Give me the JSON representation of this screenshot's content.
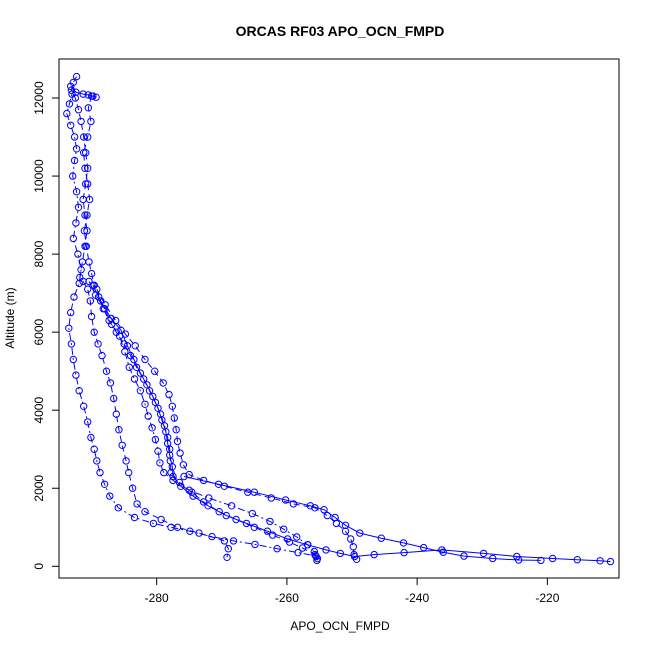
{
  "chart_data": {
    "type": "scatter",
    "title": "ORCAS RF03 APO_OCN_FMPD",
    "xlabel": "APO_OCN_FMPD",
    "ylabel": "Altitude (m)",
    "xlim": [
      -295,
      -209
    ],
    "ylim": [
      -300,
      13000
    ],
    "xticks": [
      -280,
      -260,
      -240,
      -220
    ],
    "yticks": [
      0,
      2000,
      4000,
      6000,
      8000,
      10000,
      12000
    ],
    "grid": false,
    "color": "#0000ff",
    "marker": "open-circle",
    "series": [
      {
        "style": "dashed",
        "points": [
          [
            -292.3,
            12550
          ],
          [
            -292.8,
            12400
          ],
          [
            -293.1,
            12200
          ],
          [
            -292.5,
            12000
          ],
          [
            -292.0,
            11700
          ],
          [
            -291.6,
            11400
          ],
          [
            -291.2,
            11000
          ],
          [
            -290.9,
            10600
          ],
          [
            -290.6,
            10200
          ],
          [
            -290.9,
            9800
          ],
          [
            -291.3,
            9400
          ],
          [
            -291.0,
            9000
          ],
          [
            -290.7,
            8600
          ],
          [
            -291.0,
            8200
          ],
          [
            -291.4,
            7800
          ],
          [
            -291.8,
            7400
          ],
          [
            -291.3,
            7300
          ],
          [
            -290.6,
            7100
          ],
          [
            -290.2,
            6800
          ],
          [
            -290.0,
            6400
          ],
          [
            -289.6,
            6000
          ],
          [
            -289.0,
            5700
          ],
          [
            -288.4,
            5400
          ],
          [
            -287.7,
            5000
          ],
          [
            -287.1,
            4700
          ],
          [
            -286.6,
            4300
          ],
          [
            -286.2,
            3900
          ],
          [
            -285.8,
            3500
          ],
          [
            -285.3,
            3100
          ],
          [
            -284.7,
            2700
          ],
          [
            -284.3,
            2400
          ],
          [
            -283.7,
            2000
          ],
          [
            -283.0,
            1600
          ],
          [
            -281.8,
            1400
          ],
          [
            -279.3,
            1200
          ],
          [
            -276.8,
            1000
          ],
          [
            -273.5,
            850
          ],
          [
            -269.6,
            650
          ],
          [
            -269.0,
            450
          ],
          [
            -269.2,
            230
          ]
        ]
      },
      {
        "style": "dotdash",
        "points": [
          [
            -293.0,
            12100
          ],
          [
            -293.4,
            11850
          ],
          [
            -293.8,
            11600
          ],
          [
            -293.2,
            11300
          ],
          [
            -292.6,
            11000
          ],
          [
            -292.3,
            10700
          ],
          [
            -292.6,
            10400
          ],
          [
            -292.9,
            10000
          ],
          [
            -292.3,
            9600
          ],
          [
            -292.0,
            9200
          ],
          [
            -292.4,
            8800
          ],
          [
            -292.8,
            8400
          ],
          [
            -292.1,
            8000
          ],
          [
            -291.6,
            7600
          ],
          [
            -291.9,
            7250
          ],
          [
            -292.7,
            6900
          ],
          [
            -293.2,
            6500
          ],
          [
            -293.5,
            6100
          ],
          [
            -293.1,
            5700
          ],
          [
            -292.8,
            5300
          ],
          [
            -292.4,
            4900
          ],
          [
            -291.9,
            4500
          ],
          [
            -291.2,
            4100
          ],
          [
            -290.6,
            3700
          ],
          [
            -290.1,
            3300
          ],
          [
            -289.6,
            3000
          ],
          [
            -289.2,
            2700
          ],
          [
            -288.7,
            2400
          ],
          [
            -288.0,
            2100
          ],
          [
            -287.2,
            1800
          ],
          [
            -285.9,
            1500
          ],
          [
            -283.4,
            1250
          ],
          [
            -280.5,
            1100
          ],
          [
            -277.8,
            1000
          ],
          [
            -274.9,
            900
          ],
          [
            -271.5,
            760
          ],
          [
            -268.2,
            650
          ],
          [
            -264.9,
            560
          ],
          [
            -261.5,
            450
          ],
          [
            -258.3,
            350
          ],
          [
            -255.6,
            270
          ]
        ]
      },
      {
        "style": "dashed",
        "points": [
          [
            -290.0,
            12050
          ],
          [
            -290.5,
            11750
          ],
          [
            -290.1,
            11400
          ],
          [
            -290.6,
            11000
          ],
          [
            -291.2,
            10600
          ],
          [
            -291.0,
            10200
          ],
          [
            -290.6,
            9800
          ],
          [
            -290.3,
            9400
          ],
          [
            -290.7,
            9000
          ],
          [
            -291.1,
            8600
          ],
          [
            -290.8,
            8200
          ],
          [
            -290.4,
            7800
          ],
          [
            -290.0,
            7500
          ],
          [
            -289.6,
            7200
          ],
          [
            -288.9,
            6900
          ],
          [
            -288.2,
            6600
          ],
          [
            -287.3,
            6300
          ],
          [
            -286.2,
            6000
          ],
          [
            -285.0,
            5700
          ],
          [
            -284.0,
            5400
          ],
          [
            -283.1,
            5100
          ],
          [
            -282.0,
            4800
          ],
          [
            -281.1,
            4500
          ],
          [
            -280.2,
            4200
          ],
          [
            -279.4,
            3900
          ],
          [
            -278.8,
            3600
          ],
          [
            -278.3,
            3300
          ],
          [
            -278.0,
            3000
          ],
          [
            -277.9,
            2700
          ],
          [
            -277.8,
            2400
          ],
          [
            -276.5,
            2150
          ],
          [
            -274.6,
            1900
          ],
          [
            -272.8,
            1650
          ],
          [
            -270.4,
            1400
          ],
          [
            -267.8,
            1200
          ],
          [
            -265.0,
            1000
          ],
          [
            -262.2,
            800
          ],
          [
            -259.6,
            620
          ],
          [
            -257.6,
            470
          ],
          [
            -255.7,
            300
          ],
          [
            -255.3,
            200
          ]
        ]
      },
      {
        "style": "solid",
        "points": [
          [
            -289.8,
            7200
          ],
          [
            -288.6,
            6800
          ],
          [
            -287.0,
            6350
          ],
          [
            -285.5,
            6050
          ],
          [
            -284.5,
            5650
          ],
          [
            -283.5,
            5300
          ],
          [
            -282.5,
            4950
          ],
          [
            -281.5,
            4650
          ],
          [
            -280.6,
            4350
          ],
          [
            -279.8,
            4050
          ],
          [
            -279.2,
            3750
          ],
          [
            -278.6,
            3450
          ],
          [
            -278.3,
            3150
          ],
          [
            -278.0,
            2850
          ],
          [
            -277.6,
            2550
          ],
          [
            -277.5,
            2300
          ],
          [
            -276.3,
            2050
          ],
          [
            -274.4,
            1800
          ],
          [
            -272.1,
            1550
          ],
          [
            -269.3,
            1300
          ],
          [
            -266.2,
            1100
          ],
          [
            -263.0,
            900
          ],
          [
            -259.9,
            700
          ],
          [
            -256.8,
            550
          ],
          [
            -254.0,
            420
          ],
          [
            -251.8,
            330
          ],
          [
            -249.6,
            250
          ],
          [
            -246.6,
            300
          ],
          [
            -242.0,
            350
          ],
          [
            -236.2,
            420
          ],
          [
            -229.8,
            330
          ],
          [
            -224.7,
            250
          ],
          [
            -219.2,
            200
          ],
          [
            -215.4,
            170
          ],
          [
            -211.9,
            140
          ],
          [
            -210.3,
            120
          ]
        ]
      },
      {
        "style": "dashed",
        "points": [
          [
            -289.2,
            7100
          ],
          [
            -287.9,
            6700
          ],
          [
            -286.3,
            6300
          ],
          [
            -284.8,
            5950
          ],
          [
            -283.3,
            5650
          ],
          [
            -281.8,
            5300
          ],
          [
            -280.3,
            5000
          ],
          [
            -279.0,
            4700
          ],
          [
            -278.1,
            4400
          ],
          [
            -277.6,
            4100
          ],
          [
            -277.3,
            3800
          ],
          [
            -277.0,
            3500
          ],
          [
            -276.8,
            3200
          ],
          [
            -276.4,
            2900
          ],
          [
            -275.9,
            2600
          ],
          [
            -275.0,
            2350
          ],
          [
            -272.8,
            2200
          ],
          [
            -269.6,
            2050
          ],
          [
            -266.0,
            1900
          ],
          [
            -262.4,
            1750
          ],
          [
            -259.0,
            1600
          ],
          [
            -255.7,
            1500
          ],
          [
            -253.8,
            1300
          ],
          [
            -252.4,
            1100
          ],
          [
            -251.0,
            900
          ],
          [
            -250.2,
            700
          ],
          [
            -249.8,
            500
          ],
          [
            -249.7,
            300
          ],
          [
            -249.3,
            180
          ]
        ]
      },
      {
        "style": "solid",
        "points": [
          [
            -275.8,
            2300
          ],
          [
            -270.5,
            2100
          ],
          [
            -265.0,
            1900
          ],
          [
            -260.2,
            1700
          ],
          [
            -256.4,
            1550
          ],
          [
            -254.3,
            1450
          ],
          [
            -252.6,
            1250
          ],
          [
            -251.0,
            1050
          ],
          [
            -248.8,
            850
          ],
          [
            -245.5,
            720
          ],
          [
            -242.1,
            600
          ],
          [
            -239.0,
            480
          ],
          [
            -236.0,
            360
          ],
          [
            -232.8,
            260
          ],
          [
            -228.4,
            200
          ],
          [
            -224.4,
            160
          ],
          [
            -221.0,
            150
          ]
        ]
      },
      {
        "style": "dotdash",
        "points": [
          [
            -290.4,
            7300
          ],
          [
            -289.4,
            6950
          ],
          [
            -288.0,
            6600
          ],
          [
            -286.9,
            6200
          ],
          [
            -285.7,
            5900
          ],
          [
            -284.9,
            5500
          ],
          [
            -284.2,
            5100
          ],
          [
            -283.4,
            4800
          ],
          [
            -282.5,
            4500
          ],
          [
            -281.8,
            4150
          ],
          [
            -281.3,
            3850
          ],
          [
            -280.7,
            3550
          ],
          [
            -280.2,
            3250
          ],
          [
            -279.8,
            2950
          ],
          [
            -279.5,
            2650
          ],
          [
            -278.9,
            2400
          ],
          [
            -277.5,
            2200
          ],
          [
            -275.0,
            1950
          ],
          [
            -272.0,
            1750
          ],
          [
            -268.5,
            1550
          ],
          [
            -265.3,
            1350
          ],
          [
            -262.6,
            1150
          ],
          [
            -260.5,
            950
          ],
          [
            -258.5,
            750
          ],
          [
            -256.8,
            550
          ],
          [
            -255.8,
            380
          ],
          [
            -255.5,
            250
          ],
          [
            -255.4,
            150
          ]
        ]
      },
      {
        "style": "solid",
        "points": [
          [
            -293.2,
            12300
          ],
          [
            -292.4,
            12150
          ],
          [
            -291.3,
            12100
          ],
          [
            -290.5,
            12080
          ],
          [
            -289.8,
            12050
          ],
          [
            -289.3,
            12020
          ]
        ]
      }
    ]
  }
}
